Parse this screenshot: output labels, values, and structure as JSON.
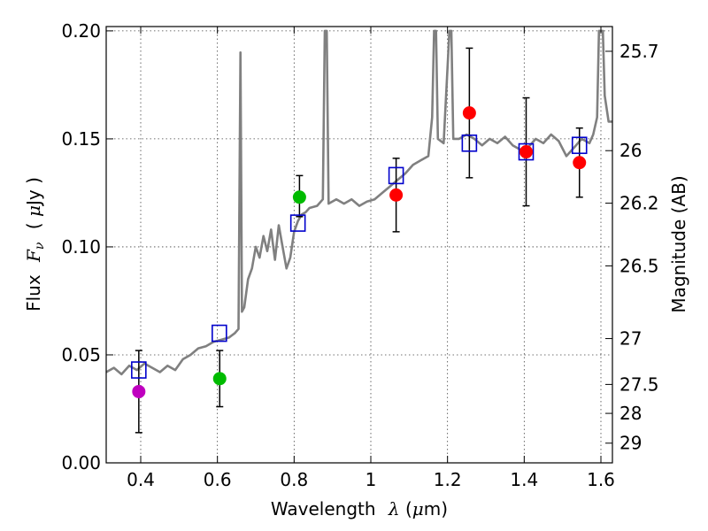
{
  "chart_data": {
    "type": "scatter",
    "xlabel": "Wavelength",
    "xlabel_symbol": "λ",
    "xlabel_unit_open": " (",
    "xlabel_unit_mu": "μ",
    "xlabel_unit_close": "m)",
    "ylabel_left": "Flux",
    "ylabel_left_symbol": "F",
    "ylabel_left_sub": "ν",
    "ylabel_left_unit_open": "( ",
    "ylabel_left_unit_mu": "μ",
    "ylabel_left_unit_close": "Jy )",
    "ylabel_right": "Magnitude (AB)",
    "xlim": [
      0.31,
      1.63
    ],
    "ylim": [
      0.0,
      0.202
    ],
    "grid": true,
    "x_ticks": [
      {
        "value": 0.4,
        "label": "0.4"
      },
      {
        "value": 0.6,
        "label": "0.6"
      },
      {
        "value": 0.8,
        "label": "0.8"
      },
      {
        "value": 1.0,
        "label": "1"
      },
      {
        "value": 1.2,
        "label": "1.2"
      },
      {
        "value": 1.4,
        "label": "1.4"
      },
      {
        "value": 1.6,
        "label": "1.6"
      }
    ],
    "y_ticks": [
      {
        "value": 0.0,
        "label": "0.00"
      },
      {
        "value": 0.05,
        "label": "0.05"
      },
      {
        "value": 0.1,
        "label": "0.10"
      },
      {
        "value": 0.15,
        "label": "0.15"
      },
      {
        "value": 0.2,
        "label": "0.20"
      }
    ],
    "right_ticks": [
      {
        "mag": 25.7,
        "label": "25.7"
      },
      {
        "mag": 26,
        "label": "26"
      },
      {
        "mag": 26.2,
        "label": "26.2"
      },
      {
        "mag": 26.5,
        "label": "26.5"
      },
      {
        "mag": 27,
        "label": "27"
      },
      {
        "mag": 27.5,
        "label": "27.5"
      },
      {
        "mag": 28,
        "label": "28"
      },
      {
        "mag": 29,
        "label": "29"
      }
    ],
    "colors": {
      "spectrum": "#808080",
      "model": "#0000cc",
      "magenta": "#bf00bf",
      "green": "#00bb00",
      "red": "#ff0000",
      "errorbar": "#000000",
      "grid": "#444444"
    },
    "observed": [
      {
        "x": 0.395,
        "y": 0.033,
        "err_low": 0.014,
        "err_high": 0.052,
        "color": "magenta"
      },
      {
        "x": 0.606,
        "y": 0.039,
        "err_low": 0.026,
        "err_high": 0.052,
        "color": "green"
      },
      {
        "x": 0.814,
        "y": 0.123,
        "err_low": 0.114,
        "err_high": 0.133,
        "color": "green"
      },
      {
        "x": 1.066,
        "y": 0.124,
        "err_low": 0.107,
        "err_high": 0.141,
        "color": "red"
      },
      {
        "x": 1.257,
        "y": 0.162,
        "err_low": 0.132,
        "err_high": 0.192,
        "color": "red"
      },
      {
        "x": 1.405,
        "y": 0.144,
        "err_low": 0.119,
        "err_high": 0.169,
        "color": "red"
      },
      {
        "x": 1.544,
        "y": 0.139,
        "err_low": 0.123,
        "err_high": 0.155,
        "color": "red"
      }
    ],
    "model": [
      {
        "x": 0.395,
        "y": 0.043
      },
      {
        "x": 0.605,
        "y": 0.06
      },
      {
        "x": 0.81,
        "y": 0.111
      },
      {
        "x": 1.066,
        "y": 0.133
      },
      {
        "x": 1.257,
        "y": 0.148
      },
      {
        "x": 1.405,
        "y": 0.144
      },
      {
        "x": 1.544,
        "y": 0.147
      }
    ],
    "spectrum": [
      [
        0.31,
        0.042
      ],
      [
        0.33,
        0.044
      ],
      [
        0.35,
        0.041
      ],
      [
        0.37,
        0.045
      ],
      [
        0.39,
        0.043
      ],
      [
        0.41,
        0.046
      ],
      [
        0.43,
        0.044
      ],
      [
        0.45,
        0.042
      ],
      [
        0.47,
        0.045
      ],
      [
        0.49,
        0.043
      ],
      [
        0.51,
        0.048
      ],
      [
        0.53,
        0.05
      ],
      [
        0.55,
        0.053
      ],
      [
        0.57,
        0.054
      ],
      [
        0.59,
        0.056
      ],
      [
        0.61,
        0.057
      ],
      [
        0.63,
        0.058
      ],
      [
        0.645,
        0.06
      ],
      [
        0.655,
        0.062
      ],
      [
        0.66,
        0.19
      ],
      [
        0.664,
        0.07
      ],
      [
        0.67,
        0.072
      ],
      [
        0.68,
        0.085
      ],
      [
        0.69,
        0.09
      ],
      [
        0.7,
        0.1
      ],
      [
        0.71,
        0.095
      ],
      [
        0.72,
        0.105
      ],
      [
        0.73,
        0.098
      ],
      [
        0.74,
        0.108
      ],
      [
        0.75,
        0.094
      ],
      [
        0.76,
        0.11
      ],
      [
        0.77,
        0.1
      ],
      [
        0.78,
        0.09
      ],
      [
        0.79,
        0.095
      ],
      [
        0.8,
        0.107
      ],
      [
        0.81,
        0.112
      ],
      [
        0.82,
        0.115
      ],
      [
        0.83,
        0.116
      ],
      [
        0.84,
        0.118
      ],
      [
        0.86,
        0.119
      ],
      [
        0.875,
        0.122
      ],
      [
        0.88,
        0.2
      ],
      [
        0.885,
        0.2
      ],
      [
        0.89,
        0.12
      ],
      [
        0.91,
        0.122
      ],
      [
        0.93,
        0.12
      ],
      [
        0.95,
        0.122
      ],
      [
        0.97,
        0.119
      ],
      [
        0.99,
        0.121
      ],
      [
        1.01,
        0.122
      ],
      [
        1.03,
        0.125
      ],
      [
        1.05,
        0.128
      ],
      [
        1.07,
        0.131
      ],
      [
        1.09,
        0.134
      ],
      [
        1.11,
        0.138
      ],
      [
        1.13,
        0.14
      ],
      [
        1.15,
        0.142
      ],
      [
        1.16,
        0.16
      ],
      [
        1.165,
        0.2
      ],
      [
        1.17,
        0.2
      ],
      [
        1.175,
        0.15
      ],
      [
        1.19,
        0.148
      ],
      [
        1.205,
        0.2
      ],
      [
        1.21,
        0.2
      ],
      [
        1.215,
        0.15
      ],
      [
        1.23,
        0.15
      ],
      [
        1.25,
        0.152
      ],
      [
        1.27,
        0.15
      ],
      [
        1.29,
        0.147
      ],
      [
        1.31,
        0.15
      ],
      [
        1.33,
        0.148
      ],
      [
        1.35,
        0.151
      ],
      [
        1.37,
        0.147
      ],
      [
        1.39,
        0.145
      ],
      [
        1.41,
        0.146
      ],
      [
        1.43,
        0.15
      ],
      [
        1.45,
        0.148
      ],
      [
        1.47,
        0.152
      ],
      [
        1.49,
        0.149
      ],
      [
        1.51,
        0.142
      ],
      [
        1.53,
        0.146
      ],
      [
        1.55,
        0.15
      ],
      [
        1.57,
        0.148
      ],
      [
        1.58,
        0.152
      ],
      [
        1.59,
        0.16
      ],
      [
        1.595,
        0.2
      ],
      [
        1.605,
        0.2
      ],
      [
        1.61,
        0.17
      ],
      [
        1.62,
        0.158
      ],
      [
        1.63,
        0.158
      ]
    ]
  }
}
